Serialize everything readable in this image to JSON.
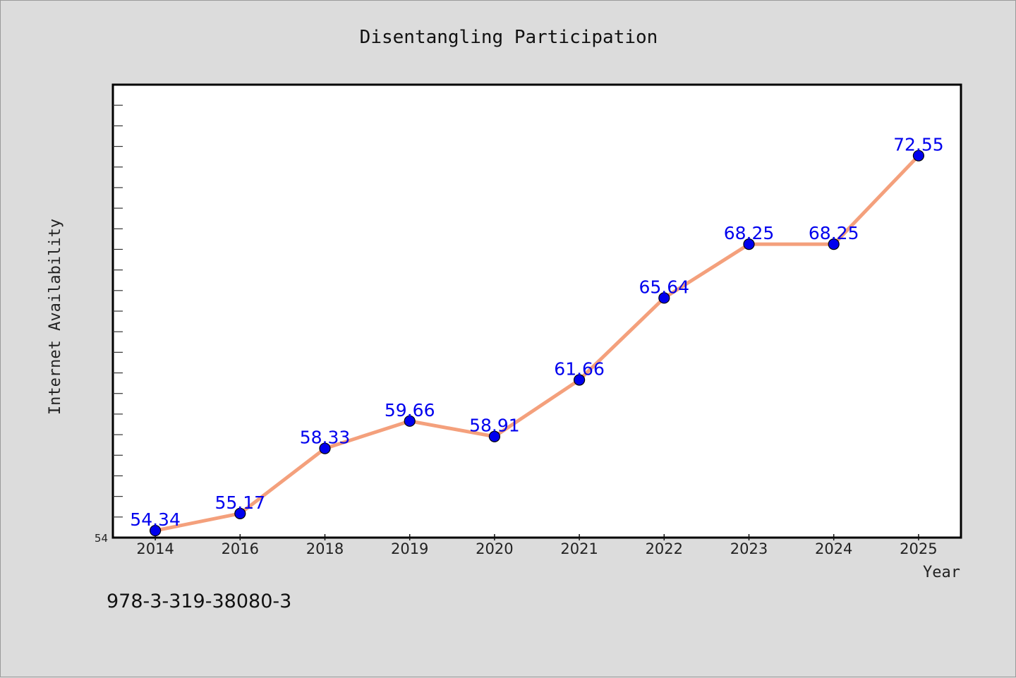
{
  "colors": {
    "line": "#f4a07c",
    "marker": "#0000ee",
    "data_label": "#0000ee",
    "plot_background": "#ffffff",
    "page_background": "#dcdcdc"
  },
  "chart_data": {
    "type": "line",
    "title": "Disentangling Participation",
    "xlabel": "Year",
    "ylabel": "Internet Availability",
    "categories": [
      "2014",
      "2016",
      "2018",
      "2019",
      "2020",
      "2021",
      "2022",
      "2023",
      "2024",
      "2025"
    ],
    "values": [
      54.34,
      55.17,
      58.33,
      59.66,
      58.91,
      61.66,
      65.64,
      68.25,
      68.25,
      72.55
    ],
    "data_labels": [
      "54.34",
      "55.17",
      "58.33",
      "59.66",
      "58.91",
      "61.66",
      "65.64",
      "68.25",
      "68.25",
      "72.55"
    ],
    "ylim": [
      54,
      76
    ],
    "y_tick_labels": [
      "54"
    ],
    "grid": false,
    "legend": "none"
  },
  "footer": {
    "isbn": "978-3-319-38080-3"
  }
}
